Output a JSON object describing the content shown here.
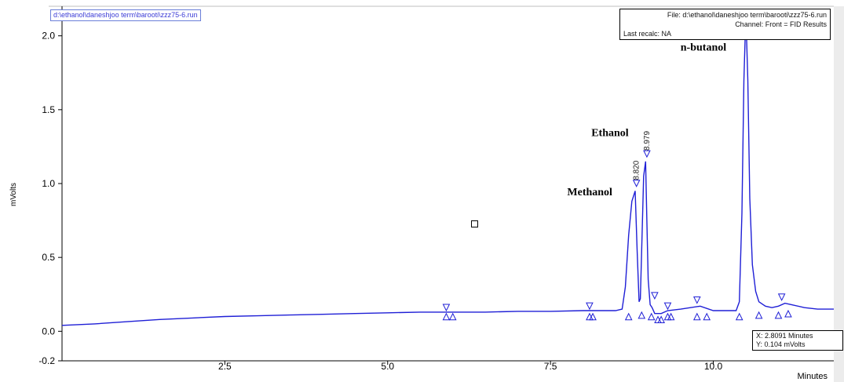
{
  "window": {
    "file_tag": "d:\\ethanol\\daneshjoo term\\barooti\\zzz75-6.run"
  },
  "info_box": {
    "file_line": "File: d:\\ethanol\\daneshjoo term\\barooti\\zzz75-6.run",
    "channel_line": "Channel: Front = FID  Results",
    "recalc_line": "Last recalc: NA"
  },
  "cursor_readout": {
    "x_line": "X:  2.8091 Minutes",
    "y_line": "Y:  0.104 mVolts"
  },
  "colors": {
    "trace": "#1f1fd6",
    "axis": "#000000",
    "label": "#000000",
    "background": "#ffffff"
  },
  "chart_data": {
    "type": "line",
    "title": "",
    "xlabel": "Minutes",
    "ylabel": "mVolts",
    "xlim": [
      0,
      11.85
    ],
    "ylim": [
      -0.2,
      2.2
    ],
    "x_ticks": [
      {
        "value": 2.5,
        "label": "2.5"
      },
      {
        "value": 5.0,
        "label": "5.0"
      },
      {
        "value": 7.5,
        "label": "7.5"
      },
      {
        "value": 10.0,
        "label": "10.0"
      }
    ],
    "y_ticks": [
      {
        "value": -0.2,
        "label": "-0.2"
      },
      {
        "value": 0.0,
        "label": "0.0"
      },
      {
        "value": 0.5,
        "label": "0.5"
      },
      {
        "value": 1.0,
        "label": "1.0"
      },
      {
        "value": 1.5,
        "label": "1.5"
      },
      {
        "value": 2.0,
        "label": "2.0"
      }
    ],
    "grid": false,
    "series": [
      {
        "x": [
          0,
          0.5,
          1.0,
          1.5,
          2.0,
          2.5,
          3.0,
          3.5,
          4.0,
          4.5,
          5.0,
          5.5,
          5.9,
          6.5,
          7.0,
          7.5,
          8.0,
          8.2,
          8.5,
          8.6,
          8.65,
          8.7,
          8.75,
          8.8,
          8.83,
          8.86,
          8.88,
          8.9,
          8.93,
          8.96,
          8.98,
          9.0,
          9.03,
          9.06,
          9.1,
          9.2,
          9.3,
          9.5,
          9.8,
          10.0,
          10.2,
          10.35,
          10.4,
          10.44,
          10.47,
          10.5,
          10.53,
          10.56,
          10.6,
          10.65,
          10.7,
          10.8,
          10.9,
          11.0,
          11.1,
          11.2,
          11.4,
          11.6,
          11.85
        ],
        "y": [
          0.04,
          0.05,
          0.065,
          0.08,
          0.09,
          0.1,
          0.105,
          0.11,
          0.115,
          0.12,
          0.125,
          0.13,
          0.13,
          0.13,
          0.135,
          0.135,
          0.14,
          0.14,
          0.14,
          0.15,
          0.3,
          0.65,
          0.88,
          0.95,
          0.55,
          0.2,
          0.22,
          0.55,
          1.05,
          1.15,
          0.75,
          0.35,
          0.18,
          0.16,
          0.12,
          0.12,
          0.14,
          0.15,
          0.17,
          0.14,
          0.14,
          0.14,
          0.2,
          0.8,
          1.7,
          2.15,
          1.7,
          0.9,
          0.45,
          0.27,
          0.2,
          0.17,
          0.16,
          0.17,
          0.19,
          0.18,
          0.16,
          0.15,
          0.15
        ]
      }
    ],
    "peak_labels": [
      {
        "x": 8.82,
        "y": 0.97,
        "text": "8.820"
      },
      {
        "x": 8.979,
        "y": 1.17,
        "text": "8.979"
      }
    ],
    "annotations": [
      {
        "x": 8.45,
        "y": 0.92,
        "text": "Methanol"
      },
      {
        "x": 8.7,
        "y": 1.32,
        "text": "Ethanol"
      },
      {
        "x": 10.2,
        "y": 1.9,
        "text": "n-butanol"
      }
    ],
    "event_markers": [
      {
        "x": 5.9,
        "y": 0.14,
        "dir": "down"
      },
      {
        "x": 5.9,
        "y": 0.12,
        "dir": "up"
      },
      {
        "x": 6.0,
        "y": 0.12,
        "dir": "up"
      },
      {
        "x": 8.1,
        "y": 0.15,
        "dir": "down"
      },
      {
        "x": 8.1,
        "y": 0.12,
        "dir": "up"
      },
      {
        "x": 8.15,
        "y": 0.12,
        "dir": "up"
      },
      {
        "x": 8.7,
        "y": 0.12,
        "dir": "up"
      },
      {
        "x": 8.82,
        "y": 0.98,
        "dir": "down"
      },
      {
        "x": 8.9,
        "y": 0.13,
        "dir": "up"
      },
      {
        "x": 8.98,
        "y": 1.18,
        "dir": "down"
      },
      {
        "x": 9.05,
        "y": 0.12,
        "dir": "up"
      },
      {
        "x": 9.1,
        "y": 0.22,
        "dir": "down"
      },
      {
        "x": 9.15,
        "y": 0.1,
        "dir": "up"
      },
      {
        "x": 9.2,
        "y": 0.1,
        "dir": "up"
      },
      {
        "x": 9.3,
        "y": 0.15,
        "dir": "down"
      },
      {
        "x": 9.3,
        "y": 0.12,
        "dir": "up"
      },
      {
        "x": 9.35,
        "y": 0.12,
        "dir": "up"
      },
      {
        "x": 9.75,
        "y": 0.19,
        "dir": "down"
      },
      {
        "x": 9.75,
        "y": 0.12,
        "dir": "up"
      },
      {
        "x": 9.9,
        "y": 0.12,
        "dir": "up"
      },
      {
        "x": 10.4,
        "y": 0.12,
        "dir": "up"
      },
      {
        "x": 10.7,
        "y": 0.13,
        "dir": "up"
      },
      {
        "x": 11.0,
        "y": 0.13,
        "dir": "up"
      },
      {
        "x": 11.05,
        "y": 0.21,
        "dir": "down"
      },
      {
        "x": 11.15,
        "y": 0.14,
        "dir": "up"
      }
    ]
  }
}
